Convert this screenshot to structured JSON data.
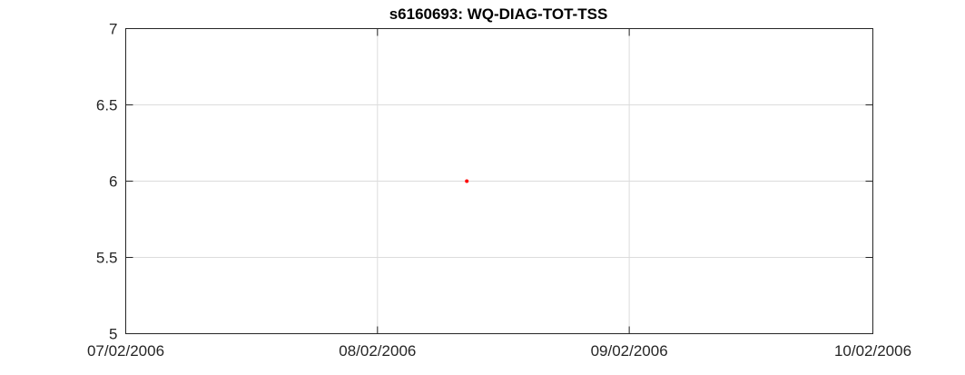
{
  "chart_data": {
    "type": "scatter",
    "title": "s6160693: WQ-DIAG-TOT-TSS",
    "xlabel": "",
    "ylabel": "",
    "x_ticks": [
      "07/02/2006",
      "08/02/2006",
      "09/02/2006",
      "10/02/2006"
    ],
    "xlim": [
      "07/02/2006",
      "10/02/2006"
    ],
    "ylim": [
      5,
      7
    ],
    "y_ticks": [
      5,
      5.5,
      6,
      6.5,
      7
    ],
    "y_tick_labels": [
      "5",
      "5.5",
      "6",
      "6.5",
      "7"
    ],
    "grid": true,
    "series": [
      {
        "color": "#ff0000",
        "points": [
          {
            "x": "2006-08-13",
            "y": 6
          }
        ]
      }
    ]
  }
}
